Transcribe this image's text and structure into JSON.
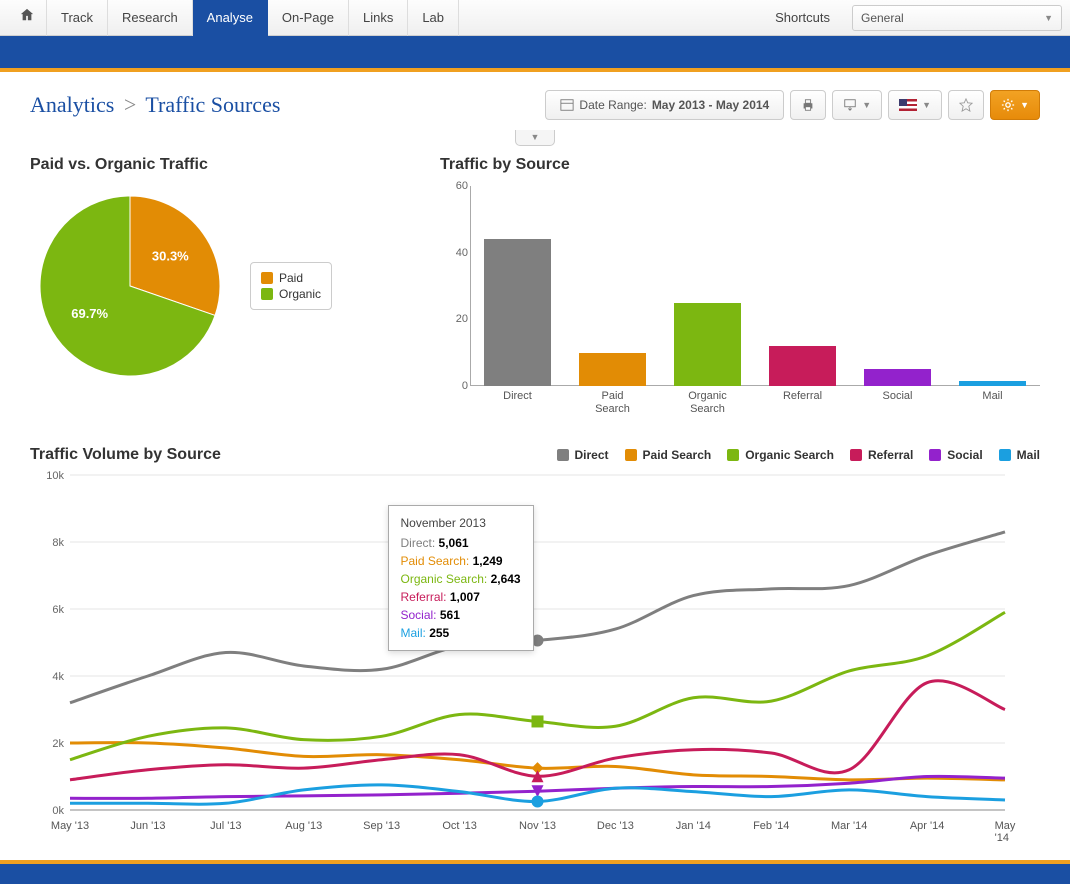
{
  "nav": {
    "tabs": [
      "Track",
      "Research",
      "Analyse",
      "On-Page",
      "Links",
      "Lab"
    ],
    "active": "Analyse",
    "shortcuts_label": "Shortcuts",
    "dropdown_value": "General"
  },
  "header": {
    "breadcrumb_root": "Analytics",
    "breadcrumb_leaf": "Traffic Sources",
    "date_label": "Date Range:",
    "date_value": "May 2013 - May 2014"
  },
  "colors": {
    "brand_blue": "#1a4fa3",
    "accent_orange": "#f0a020",
    "paid": "#e28c05",
    "organic": "#7cb711",
    "direct": "#7f7f7f",
    "paid_search": "#e28c05",
    "organic_search": "#7cb711",
    "referral": "#c71c5a",
    "social": "#9322cc",
    "mail": "#1b9fe0"
  },
  "pie": {
    "title": "Paid vs. Organic Traffic",
    "slices": [
      {
        "label": "Paid",
        "key": "paid",
        "value": 30.3,
        "display": "30.3%",
        "color": "#e28c05"
      },
      {
        "label": "Organic",
        "key": "organic",
        "value": 69.7,
        "display": "69.7%",
        "color": "#7cb711"
      }
    ]
  },
  "bar": {
    "title": "Traffic by Source",
    "ymax": 60,
    "ytick_step": 20,
    "yticks": [
      0,
      20,
      40,
      60
    ],
    "categories": [
      "Direct",
      "Paid Search",
      "Organic Search",
      "Referral",
      "Social",
      "Mail"
    ],
    "values": [
      44,
      10,
      25,
      12,
      5,
      1.5
    ],
    "bar_colors": [
      "#7f7f7f",
      "#e28c05",
      "#7cb711",
      "#c71c5a",
      "#9322cc",
      "#1b9fe0"
    ]
  },
  "line": {
    "title": "Traffic Volume by Source",
    "ymax": 10000,
    "ytick_step": 2000,
    "yticks": [
      {
        "v": 0,
        "label": "0k"
      },
      {
        "v": 2000,
        "label": "2k"
      },
      {
        "v": 4000,
        "label": "4k"
      },
      {
        "v": 6000,
        "label": "6k"
      },
      {
        "v": 8000,
        "label": "8k"
      },
      {
        "v": 10000,
        "label": "10k"
      }
    ],
    "x_labels": [
      "May '13",
      "Jun '13",
      "Jul '13",
      "Aug '13",
      "Sep '13",
      "Oct '13",
      "Nov '13",
      "Dec '13",
      "Jan '14",
      "Feb '14",
      "Mar '14",
      "Apr '14",
      "May '14"
    ],
    "series": [
      {
        "key": "direct",
        "label": "Direct",
        "color": "#7f7f7f",
        "marker": "circle",
        "line_width": 3,
        "data": [
          3200,
          4000,
          4700,
          4300,
          4200,
          4900,
          5061,
          5400,
          6400,
          6600,
          6700,
          7600,
          8300
        ]
      },
      {
        "key": "paid_search",
        "label": "Paid Search",
        "color": "#e28c05",
        "marker": "diamond",
        "line_width": 3,
        "data": [
          2000,
          2000,
          1850,
          1600,
          1650,
          1500,
          1249,
          1300,
          1050,
          1000,
          900,
          950,
          900
        ]
      },
      {
        "key": "organic_search",
        "label": "Organic Search",
        "color": "#7cb711",
        "marker": "square",
        "line_width": 3,
        "data": [
          1500,
          2200,
          2450,
          2100,
          2200,
          2850,
          2643,
          2500,
          3350,
          3250,
          4150,
          4600,
          5900
        ]
      },
      {
        "key": "referral",
        "label": "Referral",
        "color": "#c71c5a",
        "marker": "triangle-up",
        "line_width": 3,
        "data": [
          900,
          1200,
          1350,
          1250,
          1500,
          1650,
          1007,
          1550,
          1800,
          1700,
          1200,
          3800,
          3000
        ]
      },
      {
        "key": "social",
        "label": "Social",
        "color": "#9322cc",
        "marker": "triangle-down",
        "line_width": 3,
        "data": [
          350,
          350,
          400,
          420,
          450,
          500,
          561,
          650,
          700,
          700,
          800,
          1000,
          950
        ]
      },
      {
        "key": "mail",
        "label": "Mail",
        "color": "#1b9fe0",
        "marker": "circle",
        "line_width": 3,
        "data": [
          200,
          200,
          200,
          600,
          750,
          550,
          255,
          650,
          550,
          400,
          600,
          400,
          300
        ]
      }
    ],
    "tooltip": {
      "x_index": 6,
      "title": "November 2013",
      "rows": [
        {
          "label": "Direct",
          "value": "5,061",
          "color": "#7f7f7f"
        },
        {
          "label": "Paid Search",
          "value": "1,249",
          "color": "#e28c05"
        },
        {
          "label": "Organic Search",
          "value": "2,643",
          "color": "#7cb711"
        },
        {
          "label": "Referral",
          "value": "1,007",
          "color": "#c71c5a"
        },
        {
          "label": "Social",
          "value": "561",
          "color": "#9322cc"
        },
        {
          "label": "Mail",
          "value": "255",
          "color": "#1b9fe0"
        }
      ]
    }
  }
}
